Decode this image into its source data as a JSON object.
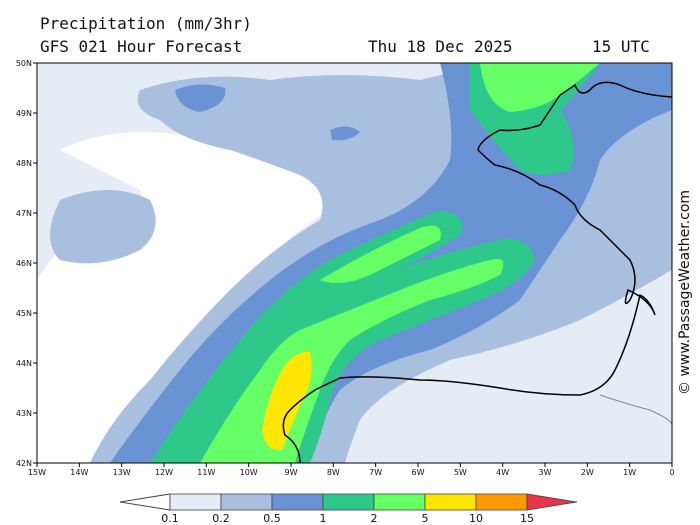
{
  "header": {
    "title": "Precipitation (mm/3hr)",
    "subtitle": "GFS 021 Hour Forecast",
    "date": "Thu 18 Dec 2025",
    "time": "15 UTC"
  },
  "axes": {
    "lat_labels": [
      "50N",
      "49N",
      "48N",
      "47N",
      "46N",
      "45N",
      "44N",
      "43N",
      "42N"
    ],
    "lon_labels": [
      "15W",
      "14W",
      "13W",
      "12W",
      "11W",
      "10W",
      "9W",
      "8W",
      "7W",
      "6W",
      "5W",
      "4W",
      "3W",
      "2W",
      "1W",
      "0"
    ]
  },
  "legend": {
    "labels": [
      "0.1",
      "0.2",
      "0.5",
      "1",
      "2",
      "5",
      "10",
      "15"
    ],
    "colors": [
      "#e6ecf6",
      "#a8bfe0",
      "#6a93d6",
      "#2ec98a",
      "#66ff66",
      "#ffe600",
      "#ff9900",
      "#e8354a"
    ]
  },
  "credit": "© www.PassageWeather.com"
}
